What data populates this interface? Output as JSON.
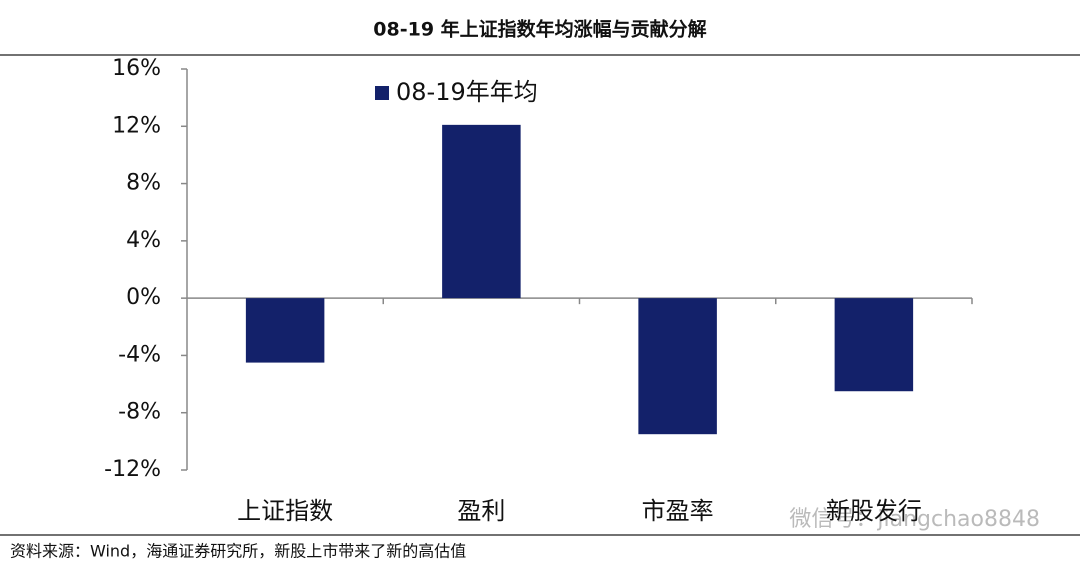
{
  "chart_data": {
    "type": "bar",
    "title": "08-19 年上证指数年均涨幅与贡献分解",
    "categories": [
      "上证指数",
      "盈利",
      "市盈率",
      "新股发行"
    ],
    "series": [
      {
        "name": "08-19年年均",
        "color": "#13216a",
        "values": [
          -4.5,
          12.1,
          -9.5,
          -6.5
        ]
      }
    ],
    "ylim": [
      -12,
      16
    ],
    "yticks": [
      {
        "value": -12,
        "label": "-12%"
      },
      {
        "value": -8,
        "label": "-8%"
      },
      {
        "value": -4,
        "label": "-4%"
      },
      {
        "value": 0,
        "label": "0%"
      },
      {
        "value": 4,
        "label": "4%"
      },
      {
        "value": 8,
        "label": "8%"
      },
      {
        "value": 12,
        "label": "12%"
      },
      {
        "value": 16,
        "label": "16%"
      }
    ],
    "legend": "top-left",
    "source": "资料来源：Wind，海通证券研究所，新股上市带来了新的高估值",
    "watermark": "微信号：jiangchao8848"
  }
}
